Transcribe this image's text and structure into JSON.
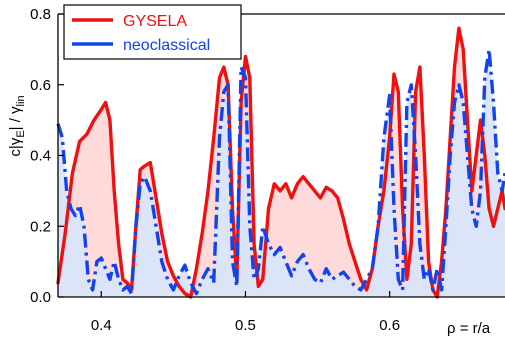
{
  "chart_data": {
    "type": "area",
    "xlabel": "ρ = r/a",
    "ylabel": "c|γ",
    "ylabel_sub1": "E",
    "ylabel_mid": "| / γ",
    "ylabel_sub2": "lin",
    "xlim": [
      0.37,
      0.68
    ],
    "ylim": [
      0.0,
      0.8
    ],
    "xticks": [
      0.4,
      0.5,
      0.6
    ],
    "xtick_labels": [
      "0.4",
      "0.5",
      "0.6"
    ],
    "yticks": [
      0.0,
      0.2,
      0.4,
      0.6,
      0.8
    ],
    "ytick_labels": [
      "0.0",
      "0.2",
      "0.4",
      "0.6",
      "0.8"
    ],
    "legend_position": "top-left",
    "series": [
      {
        "name": "GYSELA",
        "color": "#ee1111",
        "fill": "#ffdada",
        "line_style": "solid",
        "x": [
          0.37,
          0.375,
          0.38,
          0.385,
          0.39,
          0.395,
          0.4,
          0.403,
          0.406,
          0.409,
          0.412,
          0.415,
          0.418,
          0.421,
          0.424,
          0.427,
          0.43,
          0.434,
          0.438,
          0.442,
          0.446,
          0.45,
          0.454,
          0.458,
          0.462,
          0.466,
          0.47,
          0.474,
          0.478,
          0.482,
          0.485,
          0.488,
          0.491,
          0.494,
          0.497,
          0.5,
          0.503,
          0.506,
          0.509,
          0.512,
          0.516,
          0.52,
          0.524,
          0.528,
          0.532,
          0.536,
          0.54,
          0.544,
          0.548,
          0.552,
          0.556,
          0.56,
          0.564,
          0.568,
          0.572,
          0.576,
          0.58,
          0.584,
          0.588,
          0.592,
          0.596,
          0.6,
          0.603,
          0.606,
          0.609,
          0.612,
          0.615,
          0.618,
          0.621,
          0.624,
          0.627,
          0.63,
          0.633,
          0.636,
          0.639,
          0.642,
          0.645,
          0.648,
          0.651,
          0.654,
          0.657,
          0.66,
          0.663,
          0.666,
          0.669,
          0.672,
          0.675,
          0.678,
          0.68
        ],
        "y": [
          0.04,
          0.18,
          0.35,
          0.44,
          0.46,
          0.5,
          0.53,
          0.55,
          0.5,
          0.3,
          0.15,
          0.05,
          0.04,
          0.02,
          0.2,
          0.36,
          0.37,
          0.38,
          0.28,
          0.18,
          0.1,
          0.06,
          0.03,
          0.01,
          0.0,
          0.08,
          0.18,
          0.3,
          0.45,
          0.62,
          0.65,
          0.6,
          0.25,
          0.05,
          0.55,
          0.68,
          0.62,
          0.15,
          0.03,
          0.05,
          0.25,
          0.32,
          0.3,
          0.32,
          0.28,
          0.32,
          0.34,
          0.32,
          0.3,
          0.28,
          0.31,
          0.3,
          0.28,
          0.22,
          0.15,
          0.1,
          0.05,
          0.02,
          0.08,
          0.2,
          0.3,
          0.45,
          0.63,
          0.58,
          0.25,
          0.05,
          0.15,
          0.58,
          0.65,
          0.4,
          0.1,
          0.02,
          0.0,
          0.1,
          0.25,
          0.45,
          0.65,
          0.76,
          0.7,
          0.5,
          0.3,
          0.4,
          0.5,
          0.4,
          0.25,
          0.2,
          0.25,
          0.3,
          0.25
        ]
      },
      {
        "name": "neoclassical",
        "color": "#1144ee",
        "fill": "#dce4f8",
        "line_style": "dashdot",
        "x": [
          0.37,
          0.373,
          0.376,
          0.379,
          0.382,
          0.385,
          0.388,
          0.391,
          0.394,
          0.397,
          0.4,
          0.403,
          0.406,
          0.409,
          0.412,
          0.415,
          0.418,
          0.421,
          0.424,
          0.427,
          0.43,
          0.434,
          0.438,
          0.442,
          0.446,
          0.45,
          0.454,
          0.458,
          0.462,
          0.466,
          0.47,
          0.474,
          0.478,
          0.482,
          0.485,
          0.488,
          0.491,
          0.494,
          0.497,
          0.5,
          0.503,
          0.506,
          0.509,
          0.512,
          0.516,
          0.52,
          0.524,
          0.528,
          0.532,
          0.536,
          0.54,
          0.544,
          0.548,
          0.552,
          0.556,
          0.56,
          0.564,
          0.568,
          0.572,
          0.576,
          0.58,
          0.584,
          0.588,
          0.592,
          0.596,
          0.6,
          0.603,
          0.606,
          0.609,
          0.612,
          0.615,
          0.618,
          0.621,
          0.624,
          0.627,
          0.63,
          0.633,
          0.636,
          0.639,
          0.642,
          0.645,
          0.648,
          0.651,
          0.654,
          0.657,
          0.66,
          0.663,
          0.666,
          0.669,
          0.672,
          0.675,
          0.678,
          0.68
        ],
        "y": [
          0.49,
          0.45,
          0.3,
          0.25,
          0.23,
          0.26,
          0.2,
          0.05,
          0.02,
          0.1,
          0.11,
          0.08,
          0.05,
          0.1,
          0.05,
          0.02,
          0.03,
          0.01,
          0.2,
          0.32,
          0.34,
          0.3,
          0.2,
          0.1,
          0.05,
          0.02,
          0.06,
          0.09,
          0.04,
          0.01,
          0.05,
          0.08,
          0.04,
          0.45,
          0.58,
          0.6,
          0.1,
          0.03,
          0.65,
          0.62,
          0.2,
          0.05,
          0.08,
          0.2,
          0.15,
          0.12,
          0.14,
          0.1,
          0.06,
          0.1,
          0.12,
          0.08,
          0.05,
          0.04,
          0.08,
          0.05,
          0.06,
          0.07,
          0.05,
          0.03,
          0.02,
          0.05,
          0.08,
          0.2,
          0.45,
          0.57,
          0.25,
          0.05,
          0.02,
          0.55,
          0.6,
          0.4,
          0.15,
          0.05,
          0.08,
          0.02,
          0.08,
          0.02,
          0.2,
          0.4,
          0.55,
          0.6,
          0.55,
          0.4,
          0.25,
          0.2,
          0.3,
          0.62,
          0.7,
          0.55,
          0.35,
          0.3,
          0.35
        ]
      }
    ]
  }
}
